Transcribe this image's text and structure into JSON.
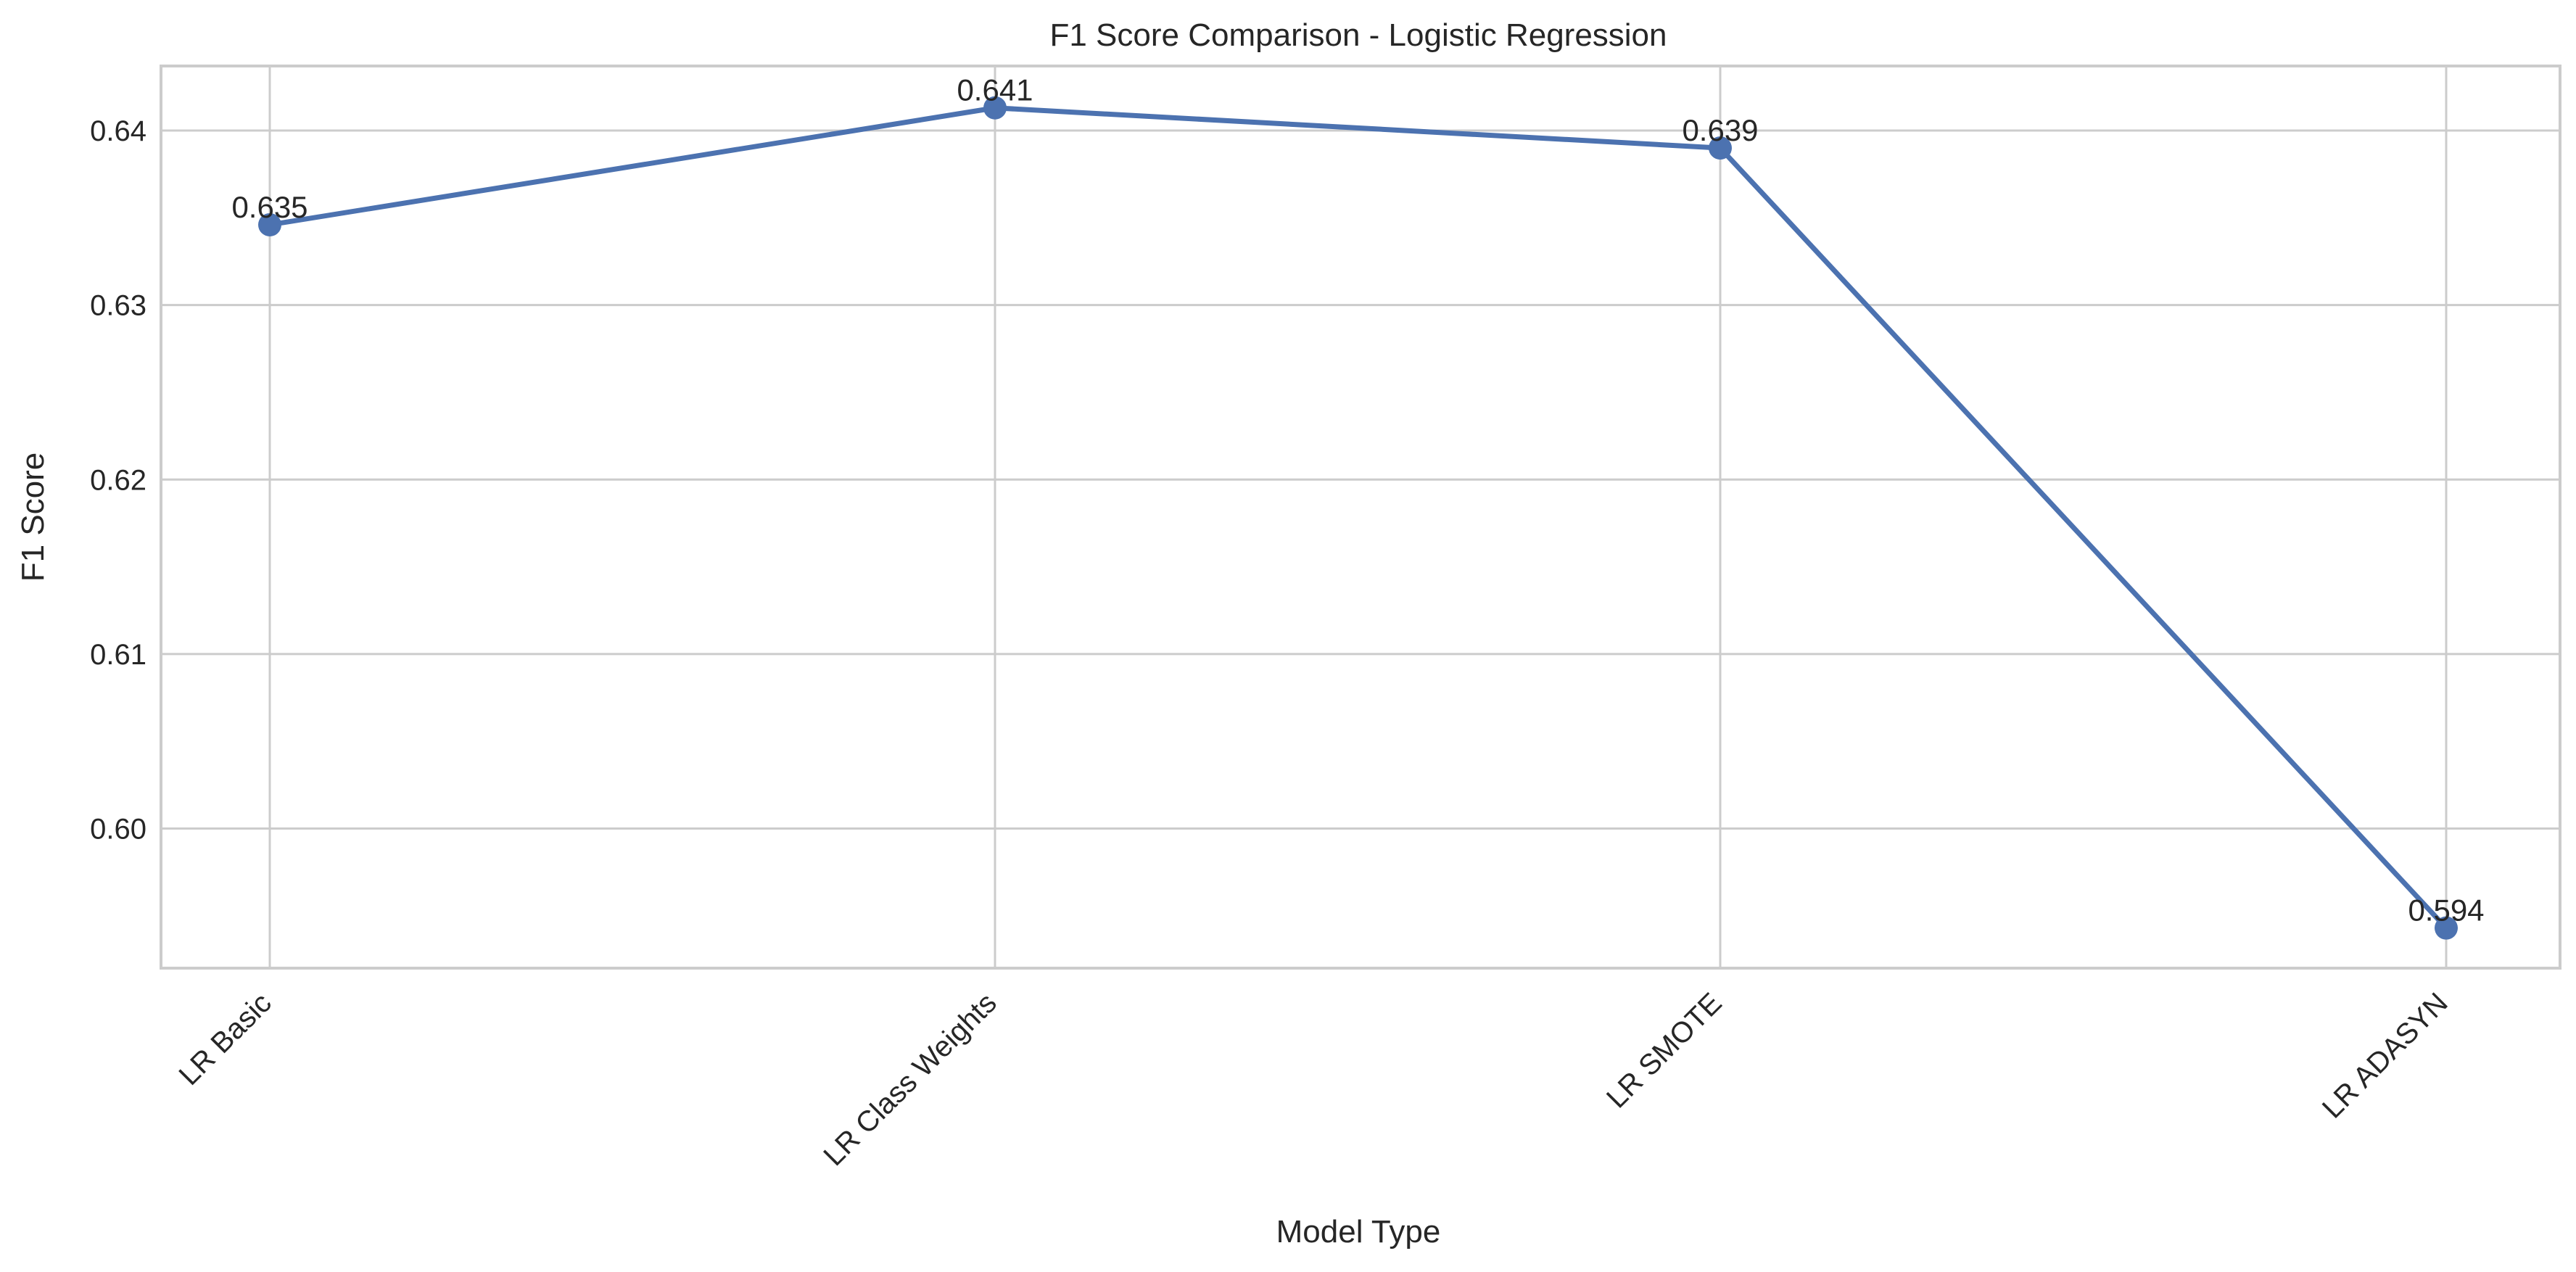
{
  "chart_data": {
    "type": "line",
    "title": "F1 Score Comparison - Logistic Regression",
    "xlabel": "Model Type",
    "ylabel": "F1 Score",
    "categories": [
      "LR Basic",
      "LR Class Weights",
      "LR SMOTE",
      "LR ADASYN"
    ],
    "series": [
      {
        "name": "F1 Score",
        "values": [
          0.6346,
          0.6413,
          0.639,
          0.5943
        ],
        "labels": [
          "0.635",
          "0.641",
          "0.639",
          "0.594"
        ]
      }
    ],
    "ylim": [
      0.592,
      0.6437
    ],
    "yticks": [
      0.6,
      0.61,
      0.62,
      0.63,
      0.64
    ],
    "ytick_labels": [
      "0.60",
      "0.61",
      "0.62",
      "0.63",
      "0.64"
    ],
    "grid": true,
    "color": "#4c72b0"
  }
}
